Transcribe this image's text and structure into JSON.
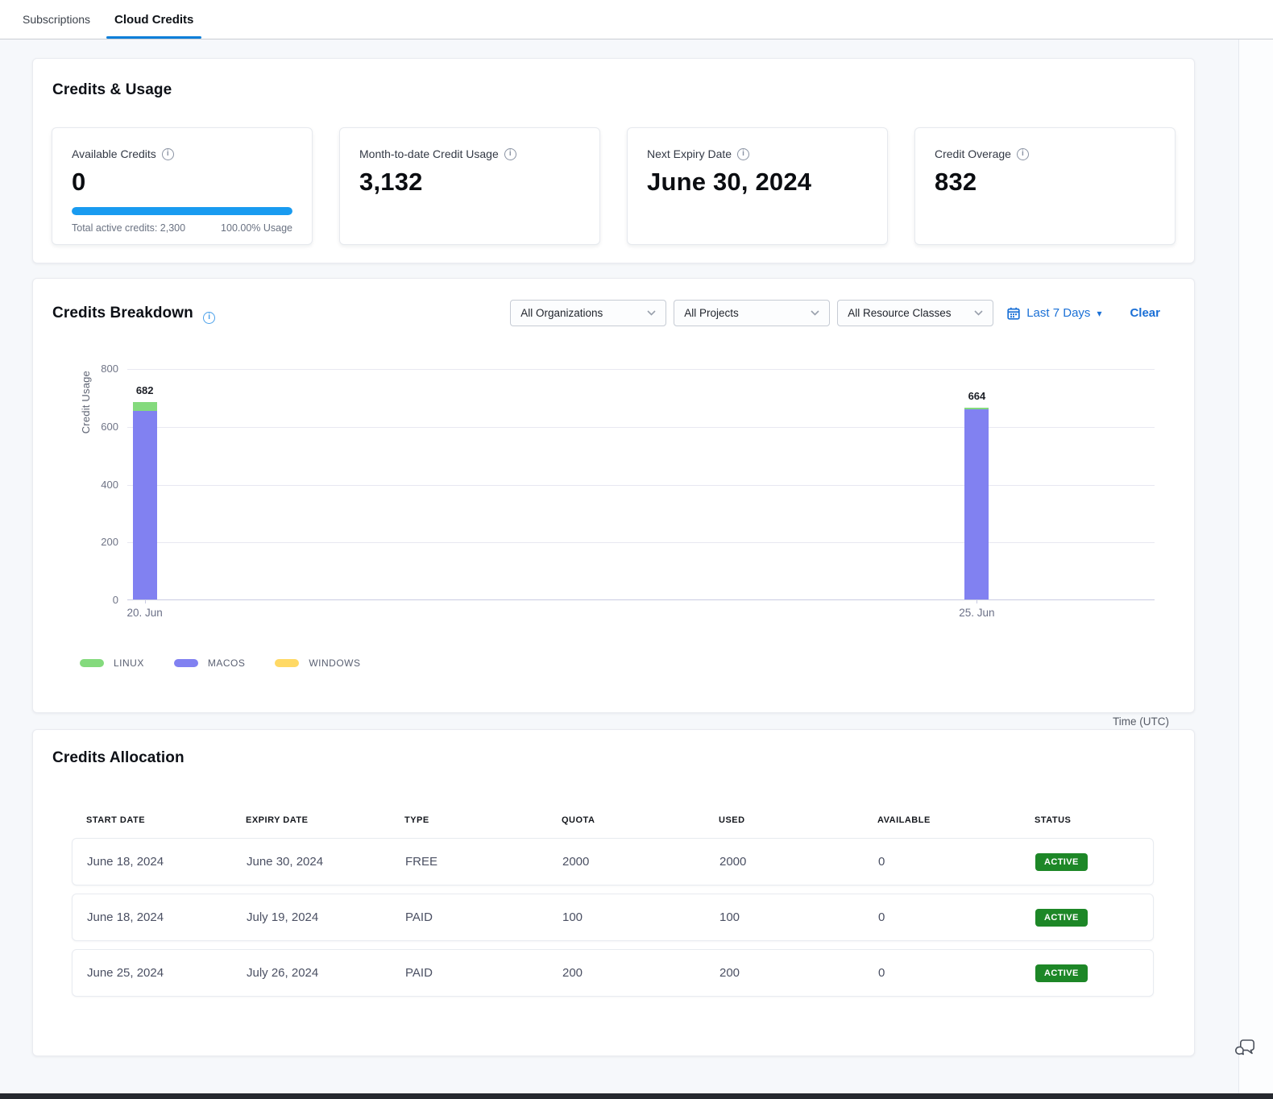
{
  "tabs": {
    "items": [
      {
        "label": "Subscriptions"
      },
      {
        "label": "Cloud Credits"
      }
    ],
    "active_index": 1
  },
  "credits_usage": {
    "title": "Credits & Usage",
    "cards": [
      {
        "label": "Available Credits",
        "value": "0",
        "progress_pct": 100,
        "footer_left": "Total active credits: 2,300",
        "footer_right": "100.00% Usage"
      },
      {
        "label": "Month-to-date Credit Usage",
        "value": "3,132"
      },
      {
        "label": "Next Expiry Date",
        "value": "June 30, 2024"
      },
      {
        "label": "Credit Overage",
        "value": "832"
      }
    ]
  },
  "credits_breakdown": {
    "title": "Credits Breakdown",
    "filters": {
      "organizations": "All Organizations",
      "projects": "All Projects",
      "resource_classes": "All Resource Classes",
      "date_range": "Last 7 Days",
      "clear_label": "Clear"
    }
  },
  "chart_data": {
    "type": "bar",
    "stacked": true,
    "ylabel": "Credit Usage",
    "xlabel": "Time (UTC)",
    "ylim": [
      0,
      800
    ],
    "yticks": [
      0,
      200,
      400,
      600,
      800
    ],
    "grid": true,
    "categories": [
      "20. Jun",
      "25. Jun"
    ],
    "series": [
      {
        "name": "MACOS",
        "color": "#8181f1",
        "values": [
          652,
          658
        ]
      },
      {
        "name": "WINDOWS",
        "color": "#ffd965",
        "values": [
          0,
          0
        ]
      },
      {
        "name": "LINUX",
        "color": "#84da7d",
        "values": [
          30,
          6
        ]
      }
    ],
    "totals": [
      682,
      664
    ],
    "legend": [
      "LINUX",
      "MACOS",
      "WINDOWS"
    ],
    "legend_position": "bottom-left",
    "bar_center_pct": [
      1.7,
      82.7
    ]
  },
  "credits_allocation": {
    "title": "Credits Allocation",
    "columns": [
      "START DATE",
      "EXPIRY DATE",
      "TYPE",
      "QUOTA",
      "USED",
      "AVAILABLE",
      "STATUS"
    ],
    "rows": [
      {
        "start_date": "June 18, 2024",
        "expiry_date": "June 30, 2024",
        "type": "FREE",
        "quota": "2000",
        "used": "2000",
        "available": "0",
        "status": "ACTIVE"
      },
      {
        "start_date": "June 18, 2024",
        "expiry_date": "July 19, 2024",
        "type": "PAID",
        "quota": "100",
        "used": "100",
        "available": "0",
        "status": "ACTIVE"
      },
      {
        "start_date": "June 25, 2024",
        "expiry_date": "July 26, 2024",
        "type": "PAID",
        "quota": "200",
        "used": "200",
        "available": "0",
        "status": "ACTIVE"
      }
    ]
  },
  "icons": {
    "info": "info-icon",
    "calendar": "calendar-icon",
    "chevron": "chevron-down-icon",
    "caret": "caret-down-icon",
    "chat": "chat-bubbles-icon"
  },
  "colors": {
    "link_blue": "#1a70d6",
    "tab_underline_blue": "#0c7fd9",
    "progress_blue": "#199bf0",
    "badge_green": "#1d8727",
    "page_bg": "#f6f8fb"
  }
}
